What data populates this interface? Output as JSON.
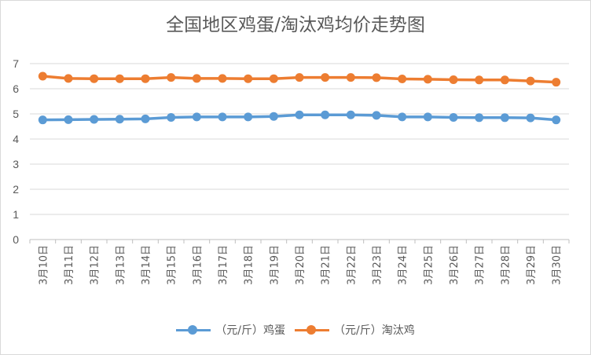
{
  "chart_data": {
    "type": "line",
    "title": "全国地区鸡蛋/淘汰鸡均价走势图",
    "categories": [
      "3月10日",
      "3月11日",
      "3月12日",
      "3月13日",
      "3月14日",
      "3月15日",
      "3月16日",
      "3月17日",
      "3月18日",
      "3月19日",
      "3月20日",
      "3月21日",
      "3月22日",
      "3月23日",
      "3月24日",
      "3月25日",
      "3月26日",
      "3月27日",
      "3月28日",
      "3月29日",
      "3月30日"
    ],
    "series": [
      {
        "name": "（元/斤）鸡蛋",
        "color": "#5b9bd5",
        "values": [
          4.76,
          4.77,
          4.78,
          4.79,
          4.8,
          4.86,
          4.88,
          4.88,
          4.88,
          4.9,
          4.96,
          4.96,
          4.96,
          4.94,
          4.88,
          4.88,
          4.86,
          4.85,
          4.85,
          4.84,
          4.76
        ]
      },
      {
        "name": "（元/斤）淘汰鸡",
        "color": "#ed7d31",
        "values": [
          6.5,
          6.41,
          6.4,
          6.4,
          6.4,
          6.45,
          6.41,
          6.41,
          6.4,
          6.4,
          6.45,
          6.45,
          6.45,
          6.44,
          6.39,
          6.38,
          6.36,
          6.35,
          6.35,
          6.31,
          6.26
        ]
      }
    ],
    "yticks": [
      0,
      1,
      2,
      3,
      4,
      5,
      6,
      7
    ],
    "ylim": [
      0,
      7
    ],
    "grid": true,
    "legend": "bottom"
  }
}
